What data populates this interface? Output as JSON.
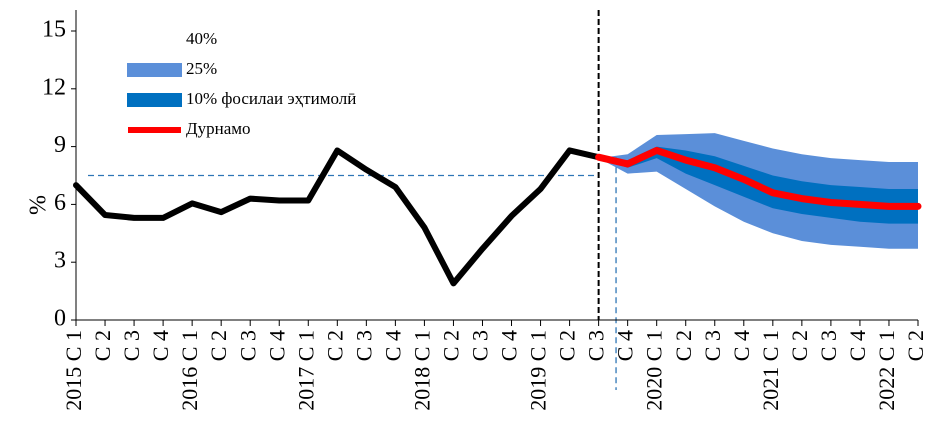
{
  "chart_data": {
    "type": "fan",
    "ylabel": "%",
    "categories": [
      "2015 C 1",
      "C 2",
      "C 3",
      "C 4",
      "2016 C 1",
      "C 2",
      "C 3",
      "C 4",
      "2017 C 1",
      "C 2",
      "C 3",
      "C 4",
      "2018 C 1",
      "C 2",
      "C 3",
      "C 4",
      "2019 C 1",
      "C 2",
      "C 3",
      "C 4",
      "2020 C 1",
      "C 2",
      "C 3",
      "C 4",
      "2021 C 1",
      "C 2",
      "C 3",
      "C 4",
      "2022 C 1",
      "C 2"
    ],
    "ylim": [
      0,
      15
    ],
    "yticks": [
      0,
      3,
      6,
      9,
      12,
      15
    ],
    "actual": {
      "color": "#000000",
      "values": [
        7.0,
        5.45,
        5.3,
        5.3,
        6.05,
        5.6,
        6.3,
        6.2,
        6.2,
        8.8,
        7.8,
        6.9,
        4.8,
        1.9,
        3.7,
        5.4,
        6.8,
        8.8,
        8.45,
        null,
        null,
        null,
        null,
        null,
        null,
        null,
        null,
        null,
        null,
        null
      ]
    },
    "reference_y": 7.5,
    "series": [
      {
        "name": "40%",
        "color": "#ffffff"
      },
      {
        "name": "25%",
        "color": "#5b8fd9",
        "upper": [
          null,
          null,
          null,
          null,
          null,
          null,
          null,
          null,
          null,
          null,
          null,
          null,
          null,
          null,
          null,
          null,
          null,
          null,
          8.4,
          8.6,
          9.6,
          9.65,
          9.7,
          9.3,
          8.9,
          8.6,
          8.4,
          8.3,
          8.2,
          8.2
        ],
        "lower": [
          null,
          null,
          null,
          null,
          null,
          null,
          null,
          null,
          null,
          null,
          null,
          null,
          null,
          null,
          null,
          null,
          null,
          null,
          8.4,
          7.6,
          7.7,
          6.8,
          5.9,
          5.1,
          4.5,
          4.1,
          3.9,
          3.8,
          3.7,
          3.7
        ]
      },
      {
        "name": "10% фосилаи эҳтимолӣ",
        "color": "#0070c0",
        "upper": [
          null,
          null,
          null,
          null,
          null,
          null,
          null,
          null,
          null,
          null,
          null,
          null,
          null,
          null,
          null,
          null,
          null,
          null,
          8.4,
          8.3,
          9.0,
          8.8,
          8.5,
          8.0,
          7.5,
          7.2,
          7.0,
          6.9,
          6.8,
          6.8
        ],
        "lower": [
          null,
          null,
          null,
          null,
          null,
          null,
          null,
          null,
          null,
          null,
          null,
          null,
          null,
          null,
          null,
          null,
          null,
          null,
          8.4,
          7.9,
          8.4,
          7.6,
          7.0,
          6.4,
          5.8,
          5.5,
          5.3,
          5.1,
          5.0,
          5.0
        ]
      },
      {
        "name": "Дурнамо",
        "color": "#ff0000",
        "values": [
          null,
          null,
          null,
          null,
          null,
          null,
          null,
          null,
          null,
          null,
          null,
          null,
          null,
          null,
          null,
          null,
          null,
          null,
          8.45,
          8.1,
          8.8,
          8.3,
          7.9,
          7.3,
          6.6,
          6.3,
          6.1,
          6.0,
          5.9,
          5.9
        ]
      }
    ]
  }
}
